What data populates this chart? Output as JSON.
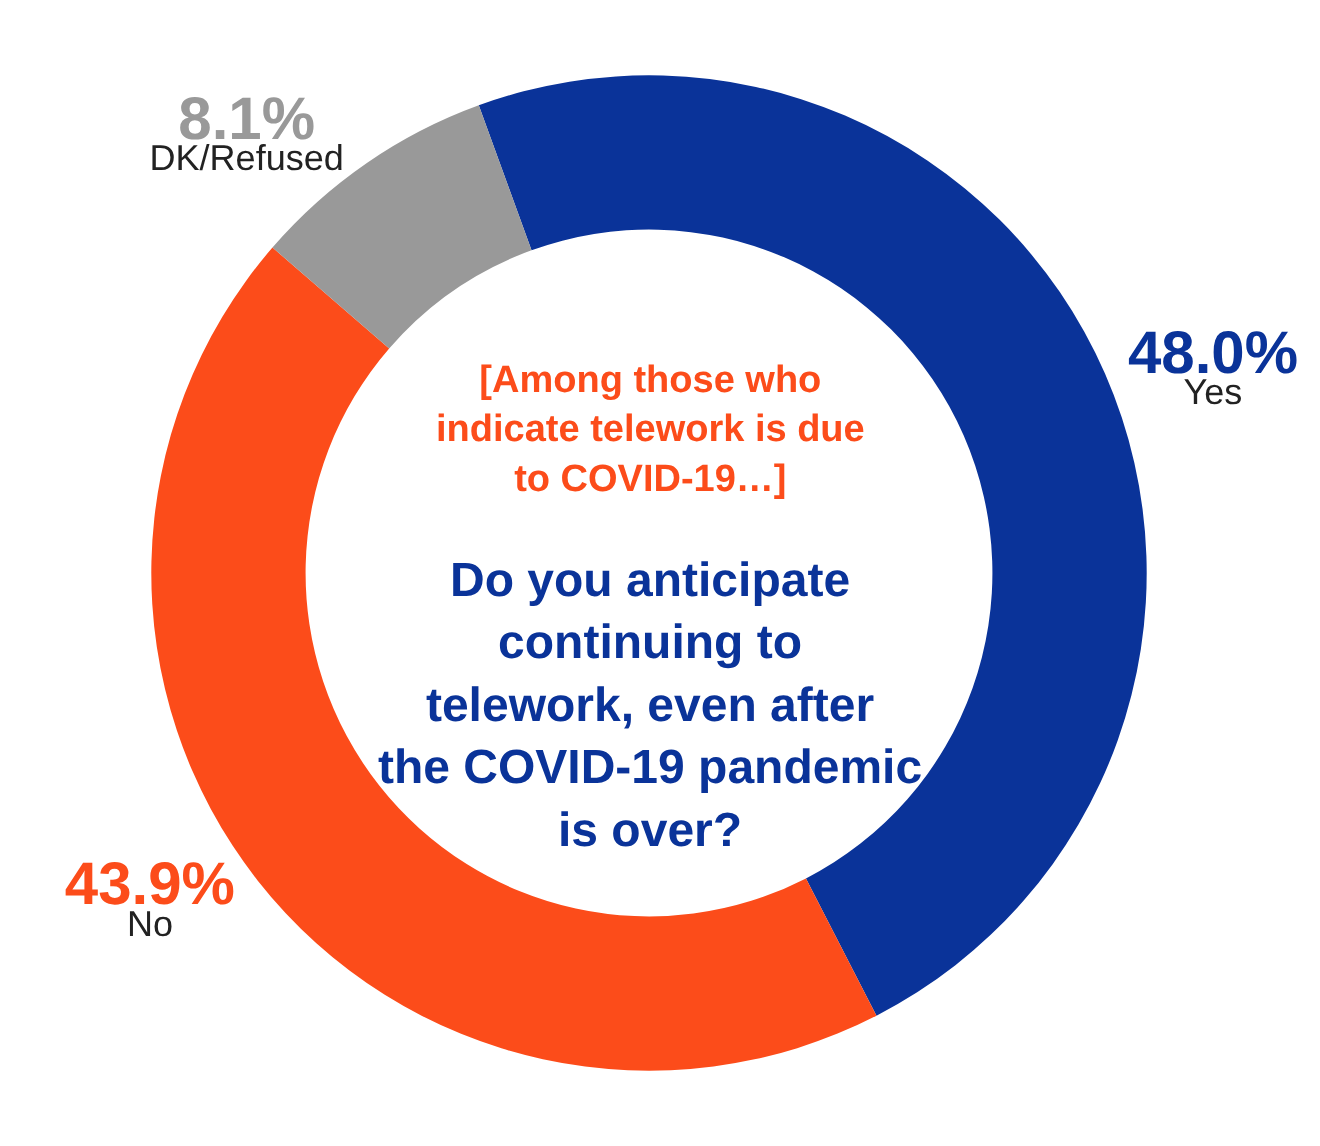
{
  "chart_data": {
    "type": "donut",
    "title": "Do you anticipate continuing to telework, even after the COVID-19 pandemic is over?",
    "subtitle": "[Among those who indicate telework is due to COVID-19…]",
    "categories": [
      "Yes",
      "No",
      "DK/Refused"
    ],
    "values": [
      48.0,
      43.9,
      8.1
    ],
    "value_labels": [
      "48.0%",
      "43.9%",
      "8.1%"
    ],
    "colors": [
      "#0a3399",
      "#fc4c1a",
      "#999999"
    ],
    "legend": false
  }
}
